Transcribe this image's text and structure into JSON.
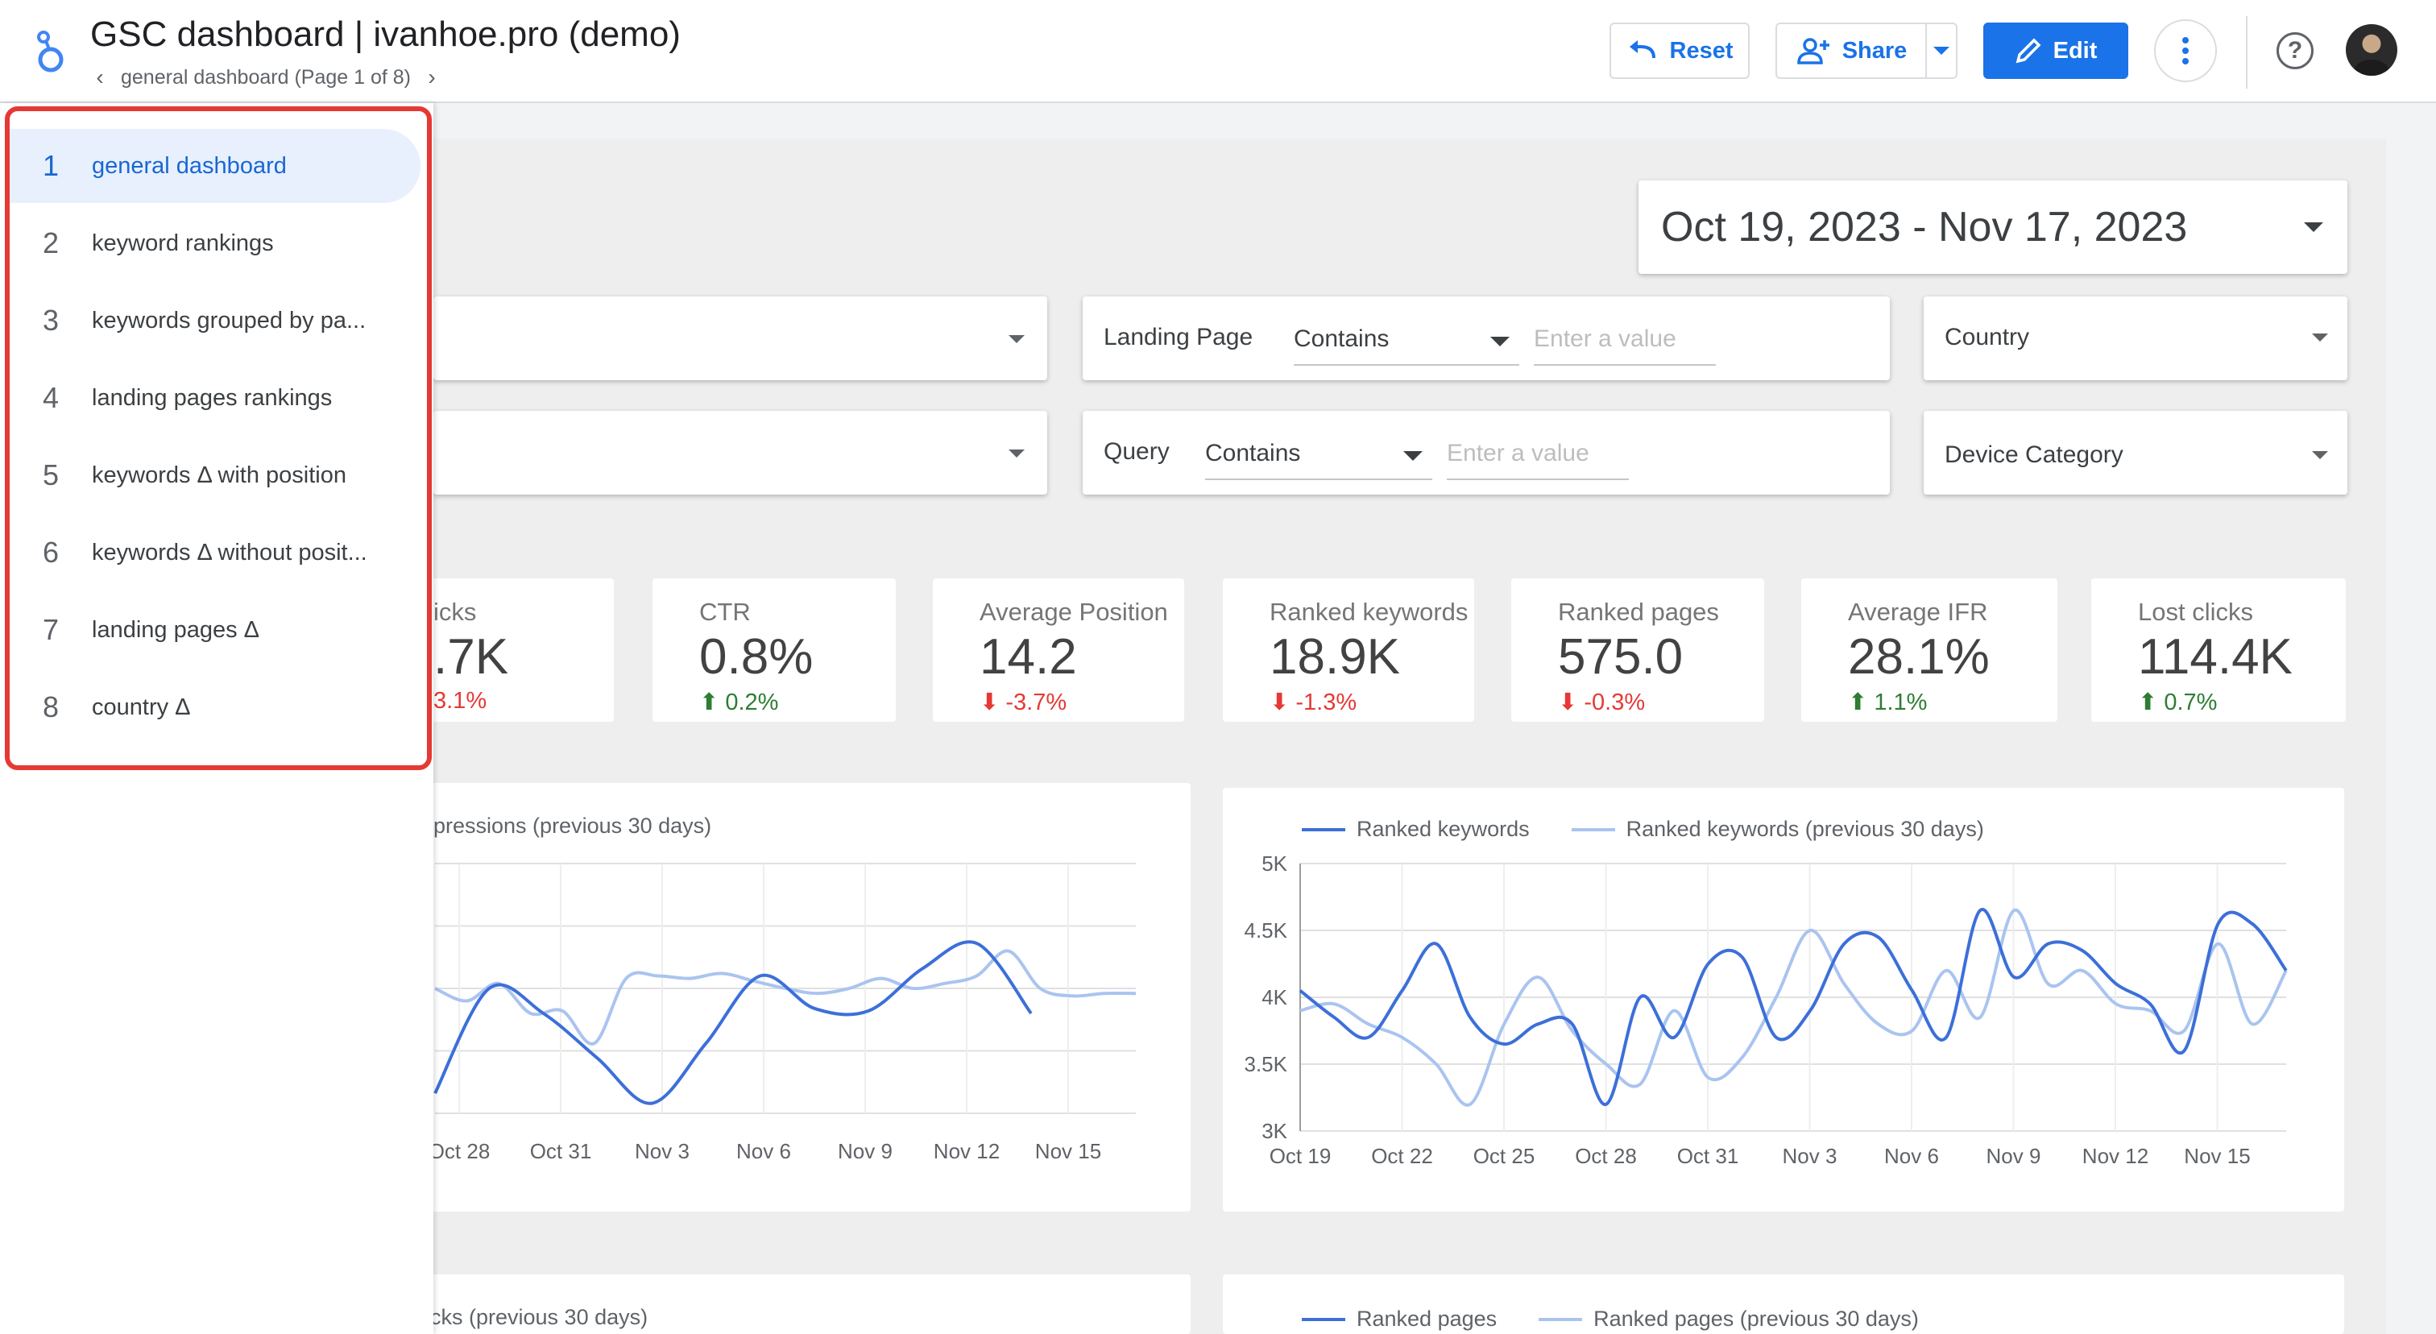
{
  "header": {
    "title": "GSC dashboard | ivanhoe.pro (demo)",
    "breadcrumb": "general dashboard (Page 1 of 8)",
    "reset_label": "Reset",
    "share_label": "Share",
    "edit_label": "Edit"
  },
  "pages_menu": [
    {
      "num": "1",
      "name": "general dashboard",
      "active": true
    },
    {
      "num": "2",
      "name": "keyword rankings"
    },
    {
      "num": "3",
      "name": "keywords grouped by pa..."
    },
    {
      "num": "4",
      "name": "landing pages rankings"
    },
    {
      "num": "5",
      "name": "keywords Δ with position"
    },
    {
      "num": "6",
      "name": "keywords Δ without posit..."
    },
    {
      "num": "7",
      "name": "landing pages Δ"
    },
    {
      "num": "8",
      "name": "country Δ"
    }
  ],
  "date_range": "Oct 19, 2023 - Nov 17, 2023",
  "filters": {
    "landing_page": {
      "label": "Landing Page",
      "operator": "Contains",
      "placeholder": "Enter a value"
    },
    "query": {
      "label": "Query",
      "operator": "Contains",
      "placeholder": "Enter a value"
    },
    "country": "Country",
    "device_category": "Device Category"
  },
  "kpis": [
    {
      "label": "icks",
      "value": ".7K",
      "delta": "3.1%",
      "direction": "down"
    },
    {
      "label": "CTR",
      "value": "0.8%",
      "delta": "0.2%",
      "direction": "up"
    },
    {
      "label": "Average Position",
      "value": "14.2",
      "delta": "-3.7%",
      "direction": "down"
    },
    {
      "label": "Ranked keywords",
      "value": "18.9K",
      "delta": "-1.3%",
      "direction": "down"
    },
    {
      "label": "Ranked pages",
      "value": "575.0",
      "delta": "-0.3%",
      "direction": "down"
    },
    {
      "label": "Average IFR",
      "value": "28.1%",
      "delta": "1.1%",
      "direction": "up"
    },
    {
      "label": "Lost clicks",
      "value": "114.4K",
      "delta": "0.7%",
      "direction": "up"
    }
  ],
  "colors": {
    "accent": "#1a73e8",
    "series_current": "#3c6fd9",
    "series_previous": "#aac4f0",
    "up": "#2e7d32",
    "down": "#e53935",
    "menu_highlight": "#e53935"
  },
  "chart_data": [
    {
      "type": "line",
      "legend": [
        "pressions (previous 30 days)"
      ],
      "x_labels": [
        "Oct 28",
        "Oct 31",
        "Nov 3",
        "Nov 6",
        "Nov 9",
        "Nov 12",
        "Nov 15"
      ],
      "series": [
        {
          "values": [
            0.92,
            0.5,
            0.6,
            0.78,
            0.96,
            0.72,
            0.45,
            0.58,
            0.59,
            0.42,
            0.32,
            0.6
          ]
        },
        {
          "values": [
            0.5,
            0.55,
            0.48,
            0.6,
            0.59,
            0.72,
            0.46,
            0.45,
            0.46,
            0.44,
            0.47,
            0.5,
            0.52,
            0.5,
            0.46,
            0.5,
            0.48,
            0.45,
            0.35,
            0.5,
            0.53,
            0.52,
            0.52
          ]
        }
      ]
    },
    {
      "type": "line",
      "legend": [
        "Ranked keywords",
        "Ranked keywords (previous 30 days)"
      ],
      "x_labels": [
        "Oct 19",
        "Oct 22",
        "Oct 25",
        "Oct 28",
        "Oct 31",
        "Nov 3",
        "Nov 6",
        "Nov 9",
        "Nov 12",
        "Nov 15"
      ],
      "y_ticks": [
        "5K",
        "4.5K",
        "4K",
        "3.5K",
        "3K"
      ],
      "ylim": [
        3000,
        5000
      ],
      "series": [
        {
          "name": "Ranked keywords",
          "values": [
            4050,
            3850,
            3700,
            4050,
            4400,
            3850,
            3650,
            3800,
            3800,
            3200,
            4000,
            3700,
            4250,
            4300,
            3700,
            3900,
            4400,
            4450,
            4050,
            3700,
            4650,
            4150,
            4400,
            4350,
            4100,
            3950,
            3600,
            4550,
            4550,
            4200
          ]
        },
        {
          "name": "Ranked keywords (previous 30 days)",
          "values": [
            3900,
            3950,
            3800,
            3700,
            3500,
            3200,
            3800,
            4150,
            3750,
            3500,
            3350,
            3900,
            3400,
            3550,
            4000,
            4500,
            4100,
            3800,
            3750,
            4200,
            3850,
            4650,
            4100,
            4200,
            3950,
            3900,
            3750,
            4400,
            3800,
            4200
          ]
        }
      ]
    }
  ],
  "bottom_legends": {
    "left": "icks (previous 30 days)",
    "right_current": "Ranked pages",
    "right_previous": "Ranked pages (previous 30 days)"
  }
}
